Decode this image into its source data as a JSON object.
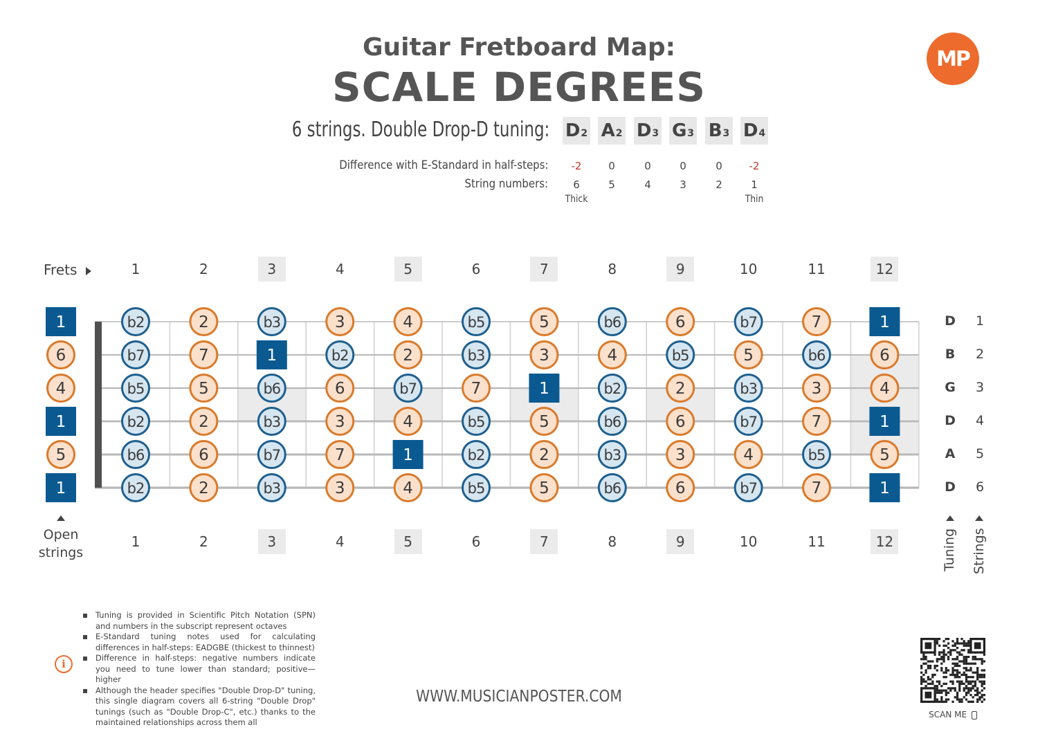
{
  "header": {
    "title_line1": "Guitar Fretboard Map:",
    "title_line2": "SCALE DEGREES",
    "logo_text": "MP"
  },
  "tuning": {
    "label": "6 strings. Double Drop-D tuning:",
    "notes": [
      {
        "note": "D",
        "octave": "2"
      },
      {
        "note": "A",
        "octave": "2"
      },
      {
        "note": "D",
        "octave": "3"
      },
      {
        "note": "G",
        "octave": "3"
      },
      {
        "note": "B",
        "octave": "3"
      },
      {
        "note": "D",
        "octave": "4"
      }
    ],
    "diff_label": "Difference with E-Standard in half-steps:",
    "diffs": [
      "-2",
      "0",
      "0",
      "0",
      "0",
      "-2"
    ],
    "string_numbers_label": "String numbers:",
    "string_numbers": [
      "6",
      "5",
      "4",
      "3",
      "2",
      "1"
    ],
    "thick_label": "Thick",
    "thin_label": "Thin"
  },
  "fretboard": {
    "frets_label": "Frets",
    "fret_numbers": [
      "1",
      "2",
      "3",
      "4",
      "5",
      "6",
      "7",
      "8",
      "9",
      "10",
      "11",
      "12"
    ],
    "marked_frets": [
      "3",
      "5",
      "7",
      "9",
      "12"
    ],
    "open_strings_label_line1": "Open",
    "open_strings_label_line2": "strings",
    "tuning_axis_label": "Tuning",
    "strings_axis_label": "Strings",
    "strings": [
      {
        "name": "D",
        "number": "1",
        "open": "1",
        "frets": [
          "b2",
          "2",
          "b3",
          "3",
          "4",
          "b5",
          "5",
          "b6",
          "6",
          "b7",
          "7",
          "1"
        ]
      },
      {
        "name": "B",
        "number": "2",
        "open": "6",
        "frets": [
          "b7",
          "7",
          "1",
          "b2",
          "2",
          "b3",
          "3",
          "4",
          "b5",
          "5",
          "b6",
          "6"
        ]
      },
      {
        "name": "G",
        "number": "3",
        "open": "4",
        "frets": [
          "b5",
          "5",
          "b6",
          "6",
          "b7",
          "7",
          "1",
          "b2",
          "2",
          "b3",
          "3",
          "4"
        ]
      },
      {
        "name": "D",
        "number": "4",
        "open": "1",
        "frets": [
          "b2",
          "2",
          "b3",
          "3",
          "4",
          "b5",
          "5",
          "b6",
          "6",
          "b7",
          "7",
          "1"
        ]
      },
      {
        "name": "A",
        "number": "5",
        "open": "5",
        "frets": [
          "b6",
          "6",
          "b7",
          "7",
          "1",
          "b2",
          "2",
          "b3",
          "3",
          "4",
          "b5",
          "5"
        ]
      },
      {
        "name": "D",
        "number": "6",
        "open": "1",
        "frets": [
          "b2",
          "2",
          "b3",
          "3",
          "4",
          "b5",
          "5",
          "b6",
          "6",
          "b7",
          "7",
          "1"
        ]
      }
    ],
    "colors": {
      "root_fill": "#0a5a91",
      "major_stroke": "#d97a2b",
      "major_fill": "#fbe0cb",
      "minor_stroke": "#1e5f8e",
      "minor_fill": "#d6e6f1",
      "string": "#b8b8b8",
      "nut": "#505050",
      "marker": "#ebebeb"
    }
  },
  "notes": [
    "Tuning is provided in Scientific Pitch Notation (SPN) and numbers in the subscript represent octaves",
    "E-Standard tuning notes used for calculating differences in half-steps: EADGBE (thickest to thinnest)",
    "Difference in half-steps: negative numbers indicate you need to tune lower than standard; positive—higher",
    "Although the header specifies \"Double Drop-D\" tuning, this single diagram covers all 6-string \"Double Drop\" tunings (such as \"Double Drop-C\", etc.) thanks to the maintained relationships across them all"
  ],
  "footer": {
    "website": "WWW.MUSICIANPOSTER.COM",
    "scan_me": "SCAN ME"
  }
}
